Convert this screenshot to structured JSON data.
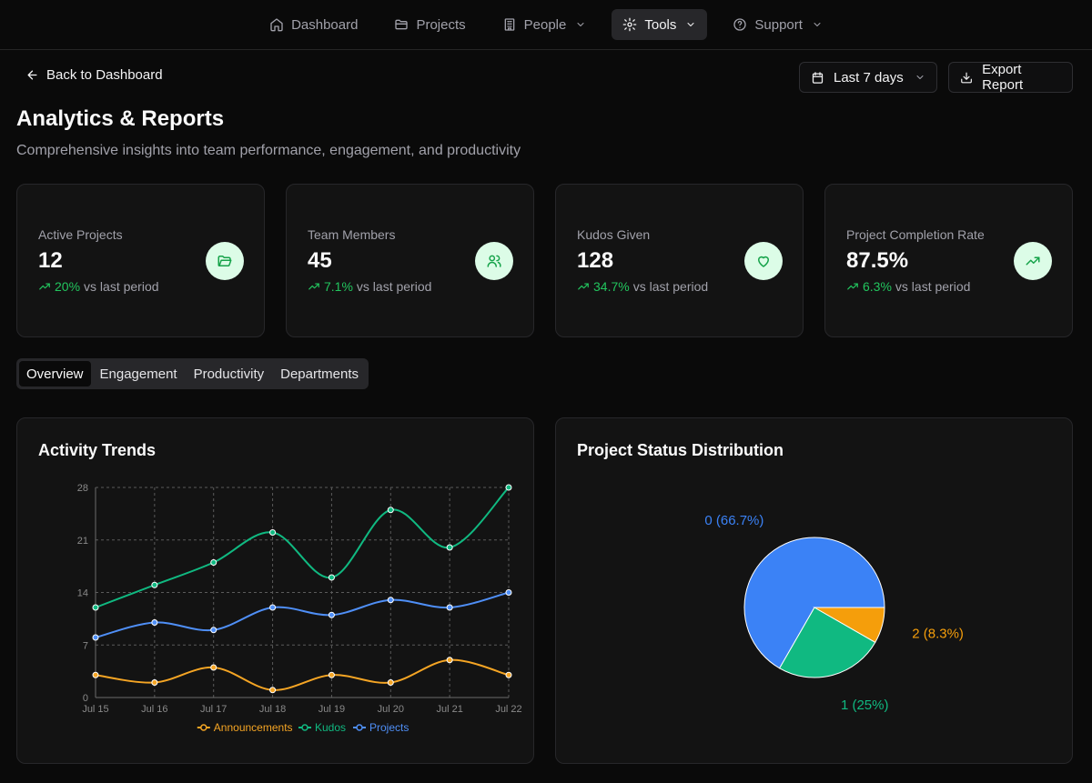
{
  "nav": {
    "items": [
      {
        "label": "Dashboard",
        "icon": "home-icon",
        "active": false
      },
      {
        "label": "Projects",
        "icon": "folder-icon",
        "active": false
      },
      {
        "label": "People",
        "icon": "building-icon",
        "active": false
      },
      {
        "label": "Tools",
        "icon": "gear-icon",
        "active": true
      },
      {
        "label": "Support",
        "icon": "help-circle-icon",
        "active": false
      }
    ]
  },
  "header": {
    "back_label": "Back to Dashboard",
    "range_label": "Last 7 days",
    "export_label": "Export Report",
    "title": "Analytics & Reports",
    "subtitle": "Comprehensive insights into team performance, engagement, and productivity"
  },
  "stats": [
    {
      "label": "Active Projects",
      "value": "12",
      "delta": "20%",
      "delta_suffix": "vs last period",
      "icon": "folder-open-icon"
    },
    {
      "label": "Team Members",
      "value": "45",
      "delta": "7.1%",
      "delta_suffix": "vs last period",
      "icon": "users-icon"
    },
    {
      "label": "Kudos Given",
      "value": "128",
      "delta": "34.7%",
      "delta_suffix": "vs last period",
      "icon": "heart-icon"
    },
    {
      "label": "Project Completion Rate",
      "value": "87.5%",
      "delta": "6.3%",
      "delta_suffix": "vs last period",
      "icon": "trending-up-icon"
    }
  ],
  "tabs": [
    {
      "label": "Overview",
      "active": true
    },
    {
      "label": "Engagement",
      "active": false
    },
    {
      "label": "Productivity",
      "active": false
    },
    {
      "label": "Departments",
      "active": false
    }
  ],
  "panels": {
    "activity_title": "Activity Trends",
    "status_title": "Project Status Distribution"
  },
  "colors": {
    "announcements": "#f5a524",
    "kudos": "#10b981",
    "projects": "#4f8ff7",
    "accent_green": "#22c55e"
  },
  "chart_data": [
    {
      "type": "line",
      "title": "Activity Trends",
      "categories": [
        "Jul 15",
        "Jul 16",
        "Jul 17",
        "Jul 18",
        "Jul 19",
        "Jul 20",
        "Jul 21",
        "Jul 22"
      ],
      "ylim": [
        0,
        28
      ],
      "yticks": [
        0,
        7,
        14,
        21,
        28
      ],
      "grid": true,
      "legend": "bottom",
      "series": [
        {
          "name": "Announcements",
          "color": "#f5a524",
          "values": [
            3,
            2,
            4,
            1,
            3,
            2,
            5,
            3
          ]
        },
        {
          "name": "Kudos",
          "color": "#10b981",
          "values": [
            12,
            15,
            18,
            22,
            16,
            25,
            20,
            28
          ]
        },
        {
          "name": "Projects",
          "color": "#4f8ff7",
          "values": [
            8,
            10,
            9,
            12,
            11,
            13,
            12,
            14
          ]
        }
      ]
    },
    {
      "type": "pie",
      "title": "Project Status Distribution",
      "slices": [
        {
          "label": "0 (66.7%)",
          "value": 66.7,
          "color": "#3b82f6"
        },
        {
          "label": "1 (25%)",
          "value": 25,
          "color": "#10b981"
        },
        {
          "label": "2 (8.3%)",
          "value": 8.3,
          "color": "#f59e0b"
        }
      ]
    }
  ]
}
